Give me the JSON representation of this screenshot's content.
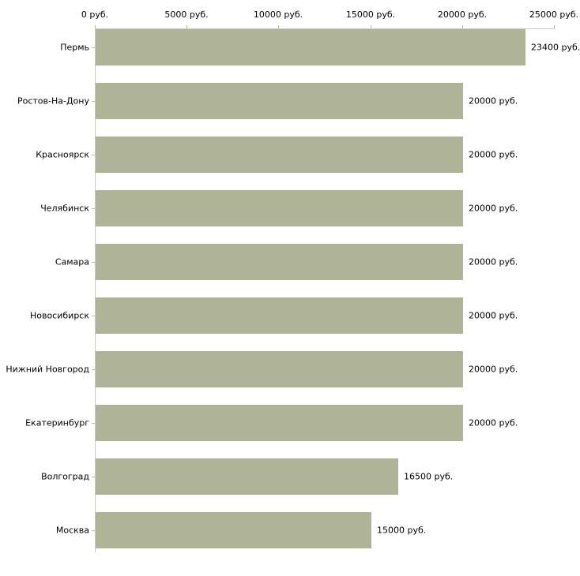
{
  "chart_data": {
    "type": "bar",
    "orientation": "horizontal",
    "title": "",
    "xlabel": "",
    "ylabel": "",
    "xlim": [
      0,
      25000
    ],
    "grid": false,
    "legend": false,
    "categories": [
      "Пермь",
      "Ростов-На-Дону",
      "Красноярск",
      "Челябинск",
      "Самара",
      "Новосибирск",
      "Нижний Новгород",
      "Екатеринбург",
      "Волгоград",
      "Москва"
    ],
    "values": [
      23400,
      20000,
      20000,
      20000,
      20000,
      20000,
      20000,
      20000,
      16500,
      15000
    ],
    "value_labels": [
      "23400 руб.",
      "20000 руб.",
      "20000 руб.",
      "20000 руб.",
      "20000 руб.",
      "20000 руб.",
      "20000 руб.",
      "20000 руб.",
      "16500 руб.",
      "15000 руб."
    ],
    "xticks": {
      "values": [
        0,
        5000,
        10000,
        15000,
        20000,
        25000
      ],
      "labels": [
        "0 руб.",
        "5000 руб.",
        "10000 руб.",
        "15000 руб.",
        "20000 руб.",
        "25000 руб."
      ]
    },
    "colors": {
      "bar": "#afb496",
      "axis": "#c8c8c8",
      "xtick": "#b2b786",
      "ytick": "#bcbcae",
      "text": "#000000",
      "background": "#ffffff"
    }
  }
}
